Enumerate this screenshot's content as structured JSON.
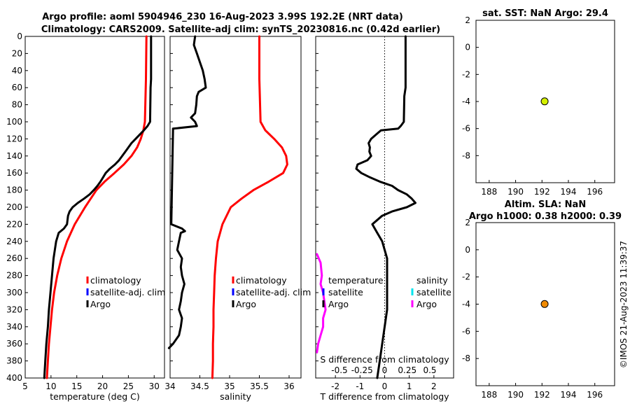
{
  "header": {
    "title_line1": "Argo profile: aoml 5904946_230 16-Aug-2023 3.99S 192.2E (NRT data)",
    "title_line2": "Climatology: CARS2009. Satellite-adj clim: synTS_20230816.nc (0.42d earlier)"
  },
  "side_stamp": "©IMOS 21-Aug-2023 11:39:37",
  "colors": {
    "climatology": "#ff0000",
    "satellite": "#0000ff",
    "argo": "#000000",
    "salinity_satellite": "#00e5ee",
    "salinity_argo": "#ff00ff",
    "sst_marker": "#d4f000",
    "sla_marker": "#f08a00"
  },
  "chart_data": [
    {
      "type": "line",
      "panel": "temperature",
      "xlabel": "temperature (deg C)",
      "xlim": [
        5,
        32
      ],
      "ylim": [
        400,
        0
      ],
      "xticks": [
        "5",
        "10",
        "15",
        "20",
        "25",
        "30"
      ],
      "yticks": [
        "0",
        "20",
        "40",
        "60",
        "80",
        "100",
        "120",
        "140",
        "160",
        "180",
        "200",
        "220",
        "240",
        "260",
        "280",
        "300",
        "320",
        "340",
        "360",
        "380",
        "400"
      ],
      "legend": [
        "climatology",
        "satellite-adj. clim",
        "Argo"
      ],
      "series": [
        {
          "name": "climatology",
          "depth": [
            0,
            50,
            100,
            110,
            120,
            130,
            140,
            150,
            160,
            170,
            180,
            200,
            220,
            240,
            260,
            280,
            300,
            320,
            340,
            360,
            380,
            400
          ],
          "values": [
            28.5,
            28.4,
            28.2,
            27.9,
            27.4,
            26.7,
            25.6,
            24.1,
            22.3,
            20.4,
            18.8,
            16.6,
            14.6,
            13.1,
            12.0,
            11.2,
            10.6,
            10.2,
            9.9,
            9.6,
            9.4,
            9.2
          ]
        },
        {
          "name": "Argo",
          "depth": [
            0,
            50,
            60,
            100,
            105,
            110,
            115,
            120,
            125,
            130,
            135,
            140,
            145,
            150,
            155,
            160,
            165,
            170,
            175,
            180,
            185,
            190,
            195,
            200,
            205,
            210,
            220,
            225,
            230,
            240,
            260,
            280,
            300,
            320,
            340,
            360,
            380,
            400
          ],
          "values": [
            29.4,
            29.4,
            29.3,
            29.2,
            28.7,
            28.0,
            27.2,
            26.4,
            25.6,
            25.0,
            24.4,
            23.8,
            23.2,
            22.4,
            21.4,
            20.6,
            20.1,
            19.6,
            19.0,
            18.3,
            17.5,
            16.4,
            15.2,
            14.2,
            13.6,
            13.3,
            13.1,
            12.5,
            11.5,
            11.0,
            10.5,
            10.2,
            9.9,
            9.6,
            9.4,
            9.1,
            8.9,
            8.7
          ]
        }
      ]
    },
    {
      "type": "line",
      "panel": "salinity",
      "xlabel": "salinity",
      "xlim": [
        34,
        36.2
      ],
      "ylim": [
        400,
        0
      ],
      "xticks": [
        "34",
        "34.5",
        "35",
        "35.5",
        "36"
      ],
      "legend": [
        "climatology",
        "satellite-adj. clim",
        "Argo"
      ],
      "series": [
        {
          "name": "climatology",
          "depth": [
            0,
            50,
            100,
            110,
            120,
            130,
            140,
            150,
            160,
            170,
            180,
            190,
            200,
            220,
            240,
            260,
            280,
            300,
            320,
            340,
            360,
            380,
            400
          ],
          "values": [
            35.5,
            35.5,
            35.52,
            35.6,
            35.75,
            35.88,
            35.95,
            35.97,
            35.9,
            35.66,
            35.4,
            35.2,
            35.02,
            34.88,
            34.8,
            34.77,
            34.75,
            34.74,
            34.73,
            34.73,
            34.72,
            34.72,
            34.71
          ]
        },
        {
          "name": "Argo",
          "depth": [
            0,
            10,
            20,
            30,
            40,
            50,
            60,
            65,
            70,
            80,
            90,
            95,
            100,
            105,
            108,
            220,
            225,
            228,
            230,
            240,
            250,
            260,
            270,
            280,
            290,
            300,
            310,
            320,
            330,
            340,
            350,
            360,
            365
          ],
          "values": [
            34.42,
            34.4,
            34.45,
            34.5,
            34.55,
            34.58,
            34.6,
            34.48,
            34.45,
            34.44,
            34.42,
            34.35,
            34.42,
            34.45,
            34.05,
            34.02,
            34.2,
            34.25,
            34.18,
            34.15,
            34.12,
            34.2,
            34.18,
            34.2,
            34.24,
            34.2,
            34.18,
            34.15,
            34.2,
            34.18,
            34.15,
            34.05,
            33.98
          ]
        }
      ]
    },
    {
      "type": "line",
      "panel": "difference",
      "xlabel": "T difference from climatology",
      "top_axis_label": "S difference from climatology",
      "xlim": [
        -2.8,
        2.8
      ],
      "ylim": [
        400,
        0
      ],
      "xticks": [
        "-2",
        "-1",
        "0",
        "1",
        "2"
      ],
      "top_ticks": [
        "-0.5",
        "-0.25",
        "0",
        "0.25",
        "0.5"
      ],
      "legend_temperature": [
        "temperature",
        "satellite",
        "Argo"
      ],
      "legend_salinity": [
        "salinity",
        "satellite",
        "Argo"
      ],
      "series": [
        {
          "name": "T Argo",
          "depth": [
            0,
            60,
            70,
            100,
            105,
            108,
            110,
            115,
            120,
            125,
            130,
            135,
            140,
            145,
            150,
            155,
            160,
            165,
            170,
            175,
            180,
            185,
            190,
            195,
            200,
            205,
            210,
            215,
            220,
            225,
            230,
            240,
            260,
            280,
            300,
            320,
            340,
            360,
            380,
            400
          ],
          "values": [
            0.85,
            0.85,
            0.8,
            0.78,
            0.65,
            0.55,
            -0.15,
            -0.35,
            -0.55,
            -0.65,
            -0.6,
            -0.62,
            -0.55,
            -0.7,
            -1.1,
            -1.15,
            -0.95,
            -0.6,
            -0.2,
            0.3,
            0.55,
            0.9,
            1.1,
            1.25,
            0.9,
            0.3,
            -0.1,
            -0.3,
            -0.5,
            -0.4,
            -0.3,
            -0.1,
            0.1,
            0.1,
            0.1,
            0.1,
            0.0,
            -0.1,
            -0.2,
            -0.3
          ]
        },
        {
          "name": "S Argo",
          "depth": [
            255,
            265,
            280,
            290,
            300,
            310,
            320,
            330,
            340,
            350,
            360,
            370
          ],
          "values": [
            -2.75,
            -2.6,
            -2.55,
            -2.6,
            -2.5,
            -2.45,
            -2.4,
            -2.5,
            -2.5,
            -2.6,
            -2.7,
            -2.75
          ]
        }
      ]
    },
    {
      "type": "scatter",
      "panel": "sst",
      "title": "sat. SST: NaN Argo: 29.4",
      "xlim": [
        187,
        197.5
      ],
      "ylim": [
        -10,
        2
      ],
      "xticks": [
        "188",
        "190",
        "192",
        "194",
        "196"
      ],
      "yticks": [
        "2",
        "0",
        "-2",
        "-4",
        "-6",
        "-8"
      ],
      "points": [
        {
          "x": 192.2,
          "y": -3.99
        }
      ]
    },
    {
      "type": "scatter",
      "panel": "sla",
      "title": "Altim. SLA: NaN",
      "title2": "Argo h1000: 0.38 h2000: 0.39",
      "xlim": [
        187,
        197.5
      ],
      "ylim": [
        -10,
        2
      ],
      "xticks": [
        "188",
        "190",
        "192",
        "194",
        "196"
      ],
      "yticks": [
        "2",
        "0",
        "-2",
        "-4",
        "-6",
        "-8"
      ],
      "points": [
        {
          "x": 192.2,
          "y": -3.99
        }
      ]
    }
  ]
}
